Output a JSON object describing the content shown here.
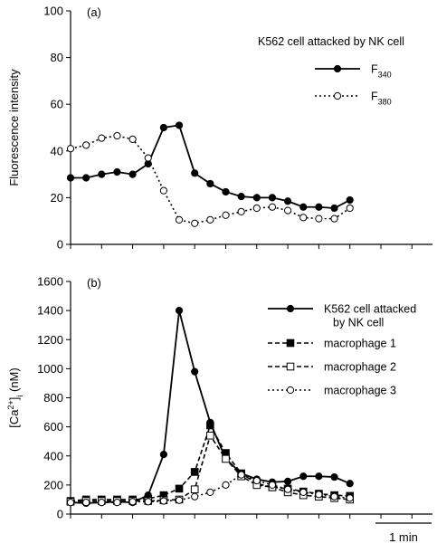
{
  "figure": {
    "scale_bar_label": "1 min"
  },
  "chart_data": [
    {
      "type": "line",
      "panel_label": "(a)",
      "annotation": "K562 cell attacked by NK cell",
      "ylabel": "Fluorescence intensity",
      "xlabel": "",
      "ylim": [
        0,
        100
      ],
      "yticks": [
        "0",
        "20",
        "40",
        "60",
        "80",
        "100"
      ],
      "xticks_minutes": [
        0,
        1,
        2,
        3,
        4,
        5,
        6,
        7,
        8,
        9,
        10,
        11,
        12
      ],
      "x": [
        0,
        0.5,
        1,
        1.5,
        2,
        2.5,
        3,
        3.5,
        4,
        4.5,
        5,
        5.5,
        6,
        6.5,
        7,
        7.5,
        8,
        8.5,
        9,
        9.5,
        10,
        10.5,
        11,
        11.5,
        12
      ],
      "legend_position": "top-right",
      "series": [
        {
          "name": "F340",
          "name_main": "F",
          "name_sub": "340",
          "style": "solid",
          "marker": "filled-circle",
          "color": "#000000",
          "values": [
            28.5,
            28.5,
            30,
            31,
            30,
            34.5,
            50,
            51,
            30.5,
            26,
            22.5,
            20.5,
            20,
            20,
            18.5,
            16,
            16,
            15.5,
            19,
            null,
            null,
            null,
            null,
            null,
            null
          ]
        },
        {
          "name": "F380",
          "name_main": "F",
          "name_sub": "380",
          "style": "dotted",
          "marker": "open-circle",
          "color": "#000000",
          "values": [
            41,
            42.5,
            45.5,
            46.5,
            45,
            37,
            23,
            10.5,
            9,
            10.5,
            12.5,
            14,
            15.5,
            16,
            14.5,
            11.5,
            11,
            11,
            15.5,
            null,
            null,
            null,
            null,
            null,
            null
          ]
        }
      ]
    },
    {
      "type": "line",
      "panel_label": "(b)",
      "ylabel": "[Ca2+]i (nM)",
      "ylabel_parts": {
        "open": "[Ca",
        "sup": "2+",
        "close": "]",
        "sub": "i",
        "unit": " (nM)"
      },
      "xlabel": "",
      "ylim": [
        0,
        1600
      ],
      "yticks": [
        "0",
        "200",
        "400",
        "600",
        "800",
        "1000",
        "1200",
        "1400",
        "1600"
      ],
      "xticks_minutes": [
        0,
        1,
        2,
        3,
        4,
        5,
        6,
        7,
        8,
        9,
        10,
        11,
        12
      ],
      "legend_position": "top-right",
      "series": [
        {
          "name": "K562 cell attacked by NK cell",
          "name_lines": [
            "K562 cell attacked",
            "by NK cell"
          ],
          "style": "solid",
          "marker": "filled-circle",
          "color": "#000000",
          "x": [
            0,
            0.5,
            1,
            1.5,
            2,
            2.5,
            3,
            3.5,
            4,
            4.5,
            5,
            5.5,
            6,
            6.5,
            7,
            7.5,
            8,
            8.5,
            9,
            9.5
          ],
          "values": [
            80,
            75,
            80,
            85,
            80,
            130,
            410,
            1400,
            980,
            630,
            380,
            280,
            240,
            220,
            225,
            260,
            260,
            255,
            210,
            null
          ]
        },
        {
          "name": "macrophage  1",
          "name_lines": [
            "macrophage  1"
          ],
          "style": "dashed",
          "marker": "filled-square",
          "color": "#000000",
          "x": [
            0,
            0.5,
            1,
            1.5,
            2,
            2.5,
            3,
            3.5,
            4,
            4.5,
            5,
            5.5,
            6,
            6.5,
            7,
            7.5,
            8,
            8.5,
            9,
            9.5
          ],
          "values": [
            90,
            100,
            100,
            100,
            100,
            105,
            130,
            175,
            290,
            610,
            420,
            280,
            210,
            185,
            175,
            155,
            140,
            130,
            125,
            null
          ]
        },
        {
          "name": "macrophage  2",
          "name_lines": [
            "macrophage  2"
          ],
          "style": "dashed",
          "marker": "open-square",
          "color": "#000000",
          "x": [
            0,
            0.5,
            1,
            1.5,
            2,
            2.5,
            3,
            3.5,
            4,
            4.5,
            5,
            5.5,
            6,
            6.5,
            7,
            7.5,
            8,
            8.5,
            9,
            9.5
          ],
          "values": [
            85,
            90,
            90,
            90,
            90,
            90,
            95,
            100,
            170,
            540,
            380,
            260,
            200,
            185,
            150,
            130,
            120,
            110,
            100,
            null
          ]
        },
        {
          "name": "macrophage  3",
          "name_lines": [
            "macrophage  3"
          ],
          "style": "dotted",
          "marker": "open-circle",
          "color": "#000000",
          "x": [
            0,
            0.5,
            1,
            1.5,
            2,
            2.5,
            3,
            3.5,
            4,
            4.5,
            5,
            5.5,
            6,
            6.5,
            7,
            7.5,
            8,
            8.5,
            9,
            9.5
          ],
          "values": [
            80,
            80,
            80,
            80,
            85,
            85,
            90,
            95,
            120,
            150,
            200,
            270,
            230,
            200,
            170,
            150,
            135,
            120,
            110,
            null
          ]
        }
      ]
    }
  ]
}
